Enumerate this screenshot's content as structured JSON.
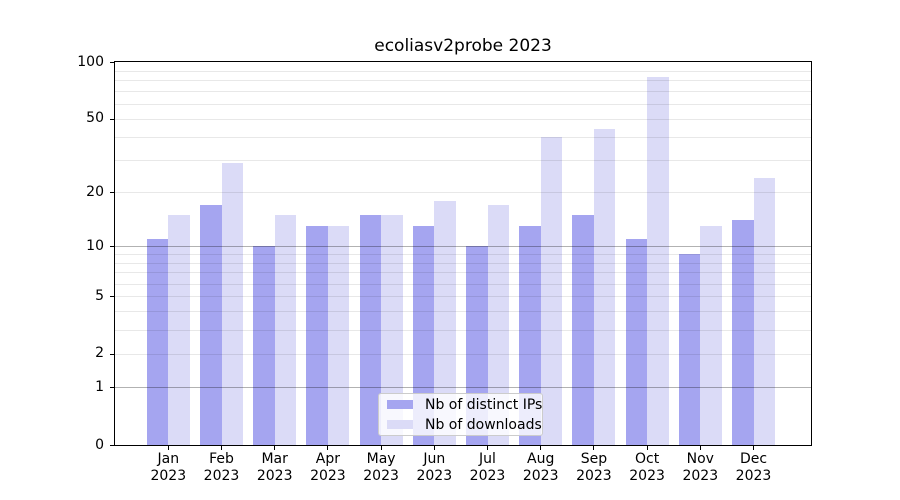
{
  "chart_data": {
    "type": "bar",
    "title": "ecoliasv2probe 2023",
    "categories": [
      "Jan",
      "Feb",
      "Mar",
      "Apr",
      "May",
      "Jun",
      "Jul",
      "Aug",
      "Sep",
      "Oct",
      "Nov",
      "Dec"
    ],
    "year_label": "2023",
    "series": [
      {
        "name": "Nb of distinct IPs",
        "color": "#a5a5f0",
        "values": [
          11,
          17,
          10,
          13,
          15,
          13,
          10,
          13,
          15,
          11,
          9,
          14
        ]
      },
      {
        "name": "Nb of downloads",
        "color": "#dbdbf7",
        "values": [
          15,
          29,
          15,
          13,
          15,
          18,
          17,
          40,
          44,
          83,
          13,
          24
        ]
      }
    ],
    "xlabel": "",
    "ylabel": "",
    "ylim": [
      0,
      100
    ],
    "yscale": "log10(1+x)",
    "yticks": [
      0,
      1,
      2,
      5,
      10,
      20,
      50,
      100
    ],
    "major_gridlines": [
      1,
      10
    ],
    "minor_gridlines": [
      2,
      3,
      4,
      5,
      6,
      7,
      8,
      9,
      20,
      30,
      40,
      50,
      60,
      70,
      80,
      90
    ],
    "grid": true,
    "legend_position": "lower center"
  }
}
